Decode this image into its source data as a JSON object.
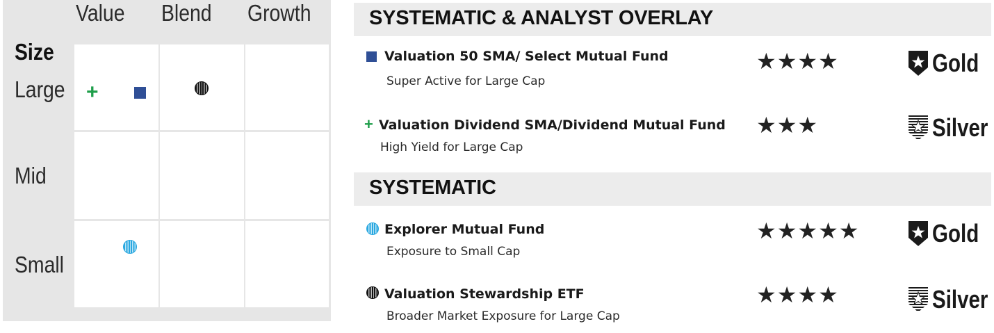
{
  "style_box": {
    "columns": [
      "Value",
      "Blend",
      "Growth"
    ],
    "row_title": "Size",
    "rows": [
      "Large",
      "Mid",
      "Small"
    ]
  },
  "sections": [
    {
      "title": "SYSTEMATIC & ANALYST OVERLAY",
      "funds": [
        {
          "marker": "square-blue",
          "name": "Valuation 50 SMA/ Select Mutual Fund",
          "subtitle": "Super Active for Large Cap",
          "stars": "★★★★",
          "medal": "Gold"
        },
        {
          "marker": "plus-green",
          "marker_text": "+",
          "name": "Valuation Dividend SMA/Dividend Mutual Fund",
          "subtitle": "High Yield for Large Cap",
          "stars": "★★★",
          "medal": "Silver"
        }
      ]
    },
    {
      "title": "SYSTEMATIC",
      "funds": [
        {
          "marker": "striped-dot-blue",
          "name": "Explorer Mutual Fund",
          "subtitle": "Exposure to Small Cap",
          "stars": "★★★★★",
          "medal": "Gold"
        },
        {
          "marker": "striped-dot-black",
          "name": "Valuation Stewardship ETF",
          "subtitle": "Broader Market Exposure for Large Cap",
          "stars": "★★★★",
          "medal": "Silver"
        }
      ]
    }
  ],
  "colors": {
    "green": "#1e9e4a",
    "blue_square": "#2f4f96",
    "cyan_dot": "#2aa8e0",
    "black": "#111111",
    "band": "#ececec",
    "box_bg": "#e6e6e6"
  },
  "icons": {
    "gold": "gold-shield-star-icon",
    "silver": "silver-shield-star-icon"
  }
}
